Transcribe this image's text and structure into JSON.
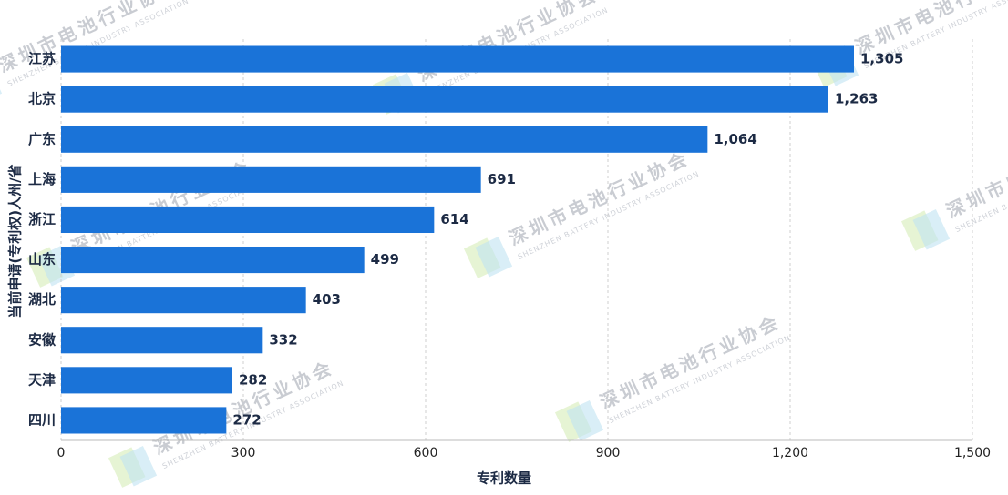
{
  "chart_data": {
    "type": "barh",
    "y_label": "当前申请(专利权)人州/省",
    "x_label": "专利数量",
    "categories": [
      "江苏",
      "北京",
      "广东",
      "上海",
      "浙江",
      "山东",
      "湖北",
      "安徽",
      "天津",
      "四川"
    ],
    "values": [
      1305,
      1263,
      1064,
      691,
      614,
      499,
      403,
      332,
      282,
      272
    ],
    "value_labels": [
      "1,305",
      "1,263",
      "1,064",
      "691",
      "614",
      "499",
      "403",
      "332",
      "282",
      "272"
    ],
    "color": "#1a73d8",
    "xlim": [
      0,
      1500
    ],
    "xticks": [
      0,
      300,
      600,
      900,
      {
        "value": 1200,
        "label": "1,200"
      },
      {
        "value": 1500,
        "label": "1,500"
      }
    ],
    "grid": true,
    "watermark": "深圳市电池行业协会",
    "watermark_sub": "SHENZHEN BATTERY INDUSTRY ASSOCIATION"
  }
}
